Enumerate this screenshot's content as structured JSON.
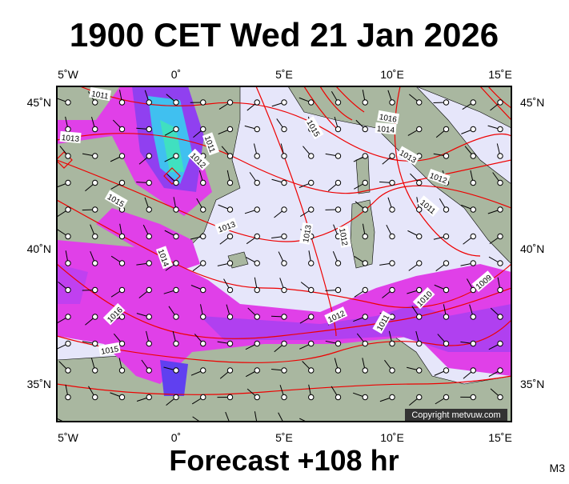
{
  "header": {
    "title": "1900 CET Wed 21 Jan 2026"
  },
  "axes": {
    "top_labels": [
      "5˚W",
      "0˚",
      "5˚E",
      "10˚E",
      "15˚E"
    ],
    "bottom_labels": [
      "5˚W",
      "0˚",
      "5˚E",
      "10˚E",
      "15˚E"
    ],
    "left_labels": [
      "45˚N",
      "40˚N",
      "35˚N"
    ],
    "right_labels": [
      "45˚N",
      "40˚N",
      "35˚N"
    ]
  },
  "isobar_labels": [
    "1011",
    "1013",
    "1015",
    "1011",
    "1012",
    "1013",
    "1014",
    "1016",
    "1015",
    "1015",
    "1016",
    "1014",
    "1013",
    "1012",
    "1011",
    "1013",
    "1012",
    "1012",
    "1011",
    "1010",
    "1009"
  ],
  "copyright": "Copyright metvuw.com",
  "footer": "Forecast +108 hr",
  "model": "M3"
}
